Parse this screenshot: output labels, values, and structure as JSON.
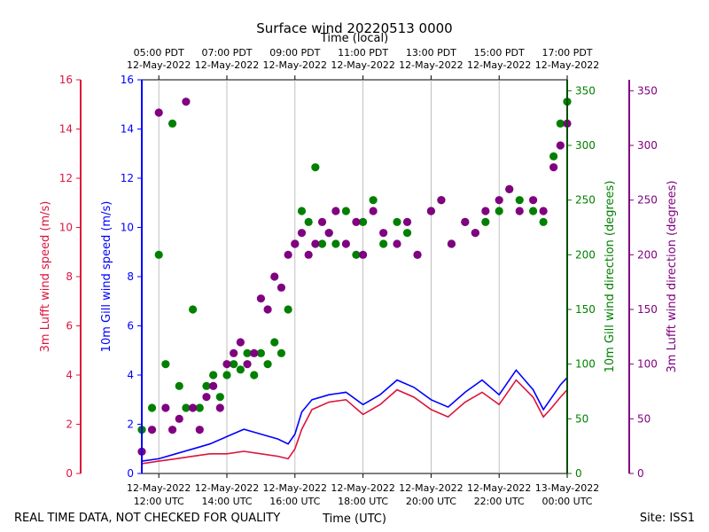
{
  "chart_data": {
    "type": "scatter",
    "title": "Surface wind 20220513 0000",
    "top_xlabel": "Time (local)",
    "xlabel": "Time (UTC)",
    "footer_left": "REAL TIME DATA, NOT CHECKED FOR QUALITY",
    "footer_right": "Site: ISS1",
    "x_range_hours_utc": [
      11.5,
      24.0
    ],
    "bottom_ticks": [
      {
        "h": 12,
        "l1": "12-May-2022",
        "l2": "12:00 UTC"
      },
      {
        "h": 14,
        "l1": "12-May-2022",
        "l2": "14:00 UTC"
      },
      {
        "h": 16,
        "l1": "12-May-2022",
        "l2": "16:00 UTC"
      },
      {
        "h": 18,
        "l1": "12-May-2022",
        "l2": "18:00 UTC"
      },
      {
        "h": 20,
        "l1": "12-May-2022",
        "l2": "20:00 UTC"
      },
      {
        "h": 22,
        "l1": "12-May-2022",
        "l2": "22:00 UTC"
      },
      {
        "h": 24,
        "l1": "13-May-2022",
        "l2": "00:00 UTC"
      }
    ],
    "top_ticks": [
      {
        "h": 12,
        "l1": "05:00 PDT",
        "l2": "12-May-2022"
      },
      {
        "h": 14,
        "l1": "07:00 PDT",
        "l2": "12-May-2022"
      },
      {
        "h": 16,
        "l1": "09:00 PDT",
        "l2": "12-May-2022"
      },
      {
        "h": 18,
        "l1": "11:00 PDT",
        "l2": "12-May-2022"
      },
      {
        "h": 20,
        "l1": "13:00 PDT",
        "l2": "12-May-2022"
      },
      {
        "h": 22,
        "l1": "15:00 PDT",
        "l2": "12-May-2022"
      },
      {
        "h": 24,
        "l1": "17:00 PDT",
        "l2": "12-May-2022"
      }
    ],
    "axes": {
      "lufft_speed": {
        "label": "3m Lufft wind speed (m/s)",
        "range": [
          0,
          16
        ],
        "ticks": [
          0,
          2,
          4,
          6,
          8,
          10,
          12,
          14,
          16
        ],
        "color": "#dc143c"
      },
      "gill_speed": {
        "label": "10m Gill wind speed (m/s)",
        "range": [
          0,
          16
        ],
        "ticks": [
          0,
          2,
          4,
          6,
          8,
          10,
          12,
          14,
          16
        ],
        "color": "#0000ff"
      },
      "gill_dir": {
        "label": "10m Gill wind direction (degrees)",
        "range": [
          0,
          360
        ],
        "ticks": [
          0,
          50,
          100,
          150,
          200,
          250,
          300,
          350
        ],
        "color": "#008000"
      },
      "lufft_dir": {
        "label": "3m Lufft wind direction (degrees)",
        "range": [
          0,
          360
        ],
        "ticks": [
          0,
          50,
          100,
          150,
          200,
          250,
          300,
          350
        ],
        "color": "#800080"
      }
    },
    "series": [
      {
        "name": "10m Gill wind speed",
        "axis": "gill_speed",
        "style": "line",
        "x": [
          11.5,
          12.0,
          12.5,
          13.0,
          13.5,
          14.0,
          14.5,
          15.0,
          15.5,
          15.8,
          16.0,
          16.2,
          16.5,
          17.0,
          17.5,
          18.0,
          18.5,
          19.0,
          19.5,
          20.0,
          20.5,
          21.0,
          21.5,
          22.0,
          22.5,
          23.0,
          23.3,
          23.5,
          23.8,
          24.0
        ],
        "y": [
          0.5,
          0.6,
          0.8,
          1.0,
          1.2,
          1.5,
          1.8,
          1.6,
          1.4,
          1.2,
          1.6,
          2.5,
          3.0,
          3.2,
          3.3,
          2.8,
          3.2,
          3.8,
          3.5,
          3.0,
          2.7,
          3.3,
          3.8,
          3.2,
          4.2,
          3.4,
          2.6,
          3.0,
          3.6,
          3.9
        ]
      },
      {
        "name": "3m Lufft wind speed",
        "axis": "lufft_speed",
        "style": "line",
        "x": [
          11.5,
          12.0,
          12.5,
          13.0,
          13.5,
          14.0,
          14.5,
          15.0,
          15.5,
          15.8,
          16.0,
          16.2,
          16.5,
          17.0,
          17.5,
          18.0,
          18.5,
          19.0,
          19.5,
          20.0,
          20.5,
          21.0,
          21.5,
          22.0,
          22.5,
          23.0,
          23.3,
          23.5,
          23.8,
          24.0
        ],
        "y": [
          0.4,
          0.5,
          0.6,
          0.7,
          0.8,
          0.8,
          0.9,
          0.8,
          0.7,
          0.6,
          1.0,
          1.8,
          2.6,
          2.9,
          3.0,
          2.4,
          2.8,
          3.4,
          3.1,
          2.6,
          2.3,
          2.9,
          3.3,
          2.8,
          3.8,
          3.1,
          2.3,
          2.6,
          3.1,
          3.4
        ]
      },
      {
        "name": "10m Gill wind direction",
        "axis": "gill_dir",
        "style": "points",
        "x": [
          11.5,
          11.8,
          12.0,
          12.2,
          12.4,
          12.6,
          12.8,
          13.0,
          13.2,
          13.4,
          13.6,
          13.8,
          14.0,
          14.2,
          14.4,
          14.6,
          14.8,
          15.0,
          15.2,
          15.4,
          15.6,
          15.8,
          16.0,
          16.2,
          16.4,
          16.6,
          16.8,
          17.0,
          17.2,
          17.5,
          17.8,
          18.0,
          18.3,
          18.6,
          19.0,
          19.3,
          19.6,
          20.0,
          20.3,
          20.6,
          21.0,
          21.3,
          21.6,
          22.0,
          22.3,
          22.6,
          23.0,
          23.3,
          23.6,
          23.8,
          24.0
        ],
        "y": [
          40,
          60,
          200,
          100,
          320,
          80,
          60,
          150,
          60,
          80,
          90,
          70,
          90,
          100,
          95,
          110,
          90,
          110,
          100,
          120,
          110,
          150,
          210,
          240,
          230,
          280,
          210,
          220,
          210,
          240,
          200,
          230,
          250,
          210,
          230,
          220,
          200,
          240,
          250,
          210,
          230,
          220,
          230,
          240,
          260,
          250,
          240,
          230,
          290,
          320,
          340
        ]
      },
      {
        "name": "3m Lufft wind direction",
        "axis": "lufft_dir",
        "style": "points",
        "x": [
          11.5,
          11.8,
          12.0,
          12.2,
          12.4,
          12.6,
          12.8,
          13.0,
          13.2,
          13.4,
          13.6,
          13.8,
          14.0,
          14.2,
          14.4,
          14.6,
          14.8,
          15.0,
          15.2,
          15.4,
          15.6,
          15.8,
          16.0,
          16.2,
          16.4,
          16.6,
          16.8,
          17.0,
          17.2,
          17.5,
          17.8,
          18.0,
          18.3,
          18.6,
          19.0,
          19.3,
          19.6,
          20.0,
          20.3,
          20.6,
          21.0,
          21.3,
          21.6,
          22.0,
          22.3,
          22.6,
          23.0,
          23.3,
          23.6,
          23.8,
          24.0
        ],
        "y": [
          20,
          40,
          330,
          60,
          40,
          50,
          340,
          60,
          40,
          70,
          80,
          60,
          100,
          110,
          120,
          100,
          110,
          160,
          150,
          180,
          170,
          200,
          210,
          220,
          200,
          210,
          230,
          220,
          240,
          210,
          230,
          200,
          240,
          220,
          210,
          230,
          200,
          240,
          250,
          210,
          230,
          220,
          240,
          250,
          260,
          240,
          250,
          240,
          280,
          300,
          320
        ]
      }
    ]
  }
}
